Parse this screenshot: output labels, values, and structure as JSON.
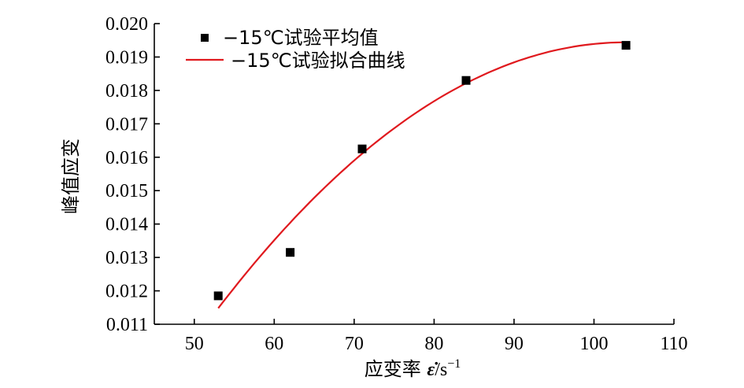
{
  "chart_data": {
    "type": "scatter",
    "title": "",
    "xlabel": "应变率 ε̇/s⁻¹",
    "xlabel_parts": {
      "prefix": "应变率 ",
      "symbol": "ε̇",
      "unit": "/s",
      "exponent": "−1"
    },
    "ylabel": "峰值应变",
    "xlim": [
      45,
      110
    ],
    "ylim": [
      0.011,
      0.02
    ],
    "x_ticks": [
      50,
      60,
      70,
      80,
      90,
      100,
      110
    ],
    "y_ticks": [
      0.011,
      0.012,
      0.013,
      0.014,
      0.015,
      0.016,
      0.017,
      0.018,
      0.019,
      0.02
    ],
    "y_tick_labels": [
      "0.011",
      "0.012",
      "0.013",
      "0.014",
      "0.015",
      "0.016",
      "0.017",
      "0.018",
      "0.019",
      "0.020"
    ],
    "series": [
      {
        "name": "−15℃试验平均值",
        "kind": "marker",
        "color": "#000000",
        "x": [
          53,
          62,
          71,
          84,
          104
        ],
        "y": [
          0.01185,
          0.01315,
          0.01625,
          0.0183,
          0.01935
        ]
      },
      {
        "name": "−15℃试验拟合曲线",
        "kind": "line",
        "color": "#e0191e",
        "x": [
          53,
          60,
          70,
          80,
          90,
          100,
          104
        ],
        "y": [
          0.01148,
          0.0133,
          0.01556,
          0.01738,
          0.0187,
          0.01936,
          0.01944
        ]
      }
    ],
    "legend_position": "top-left",
    "grid": false
  }
}
